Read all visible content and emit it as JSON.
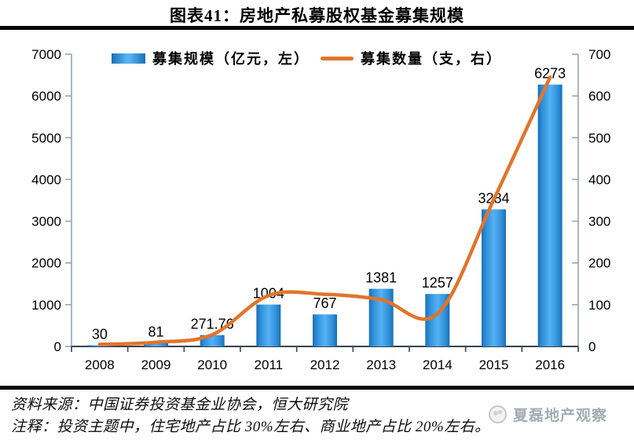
{
  "header": {
    "title": "图表41：房地产私募股权基金募集规模"
  },
  "chart_data": {
    "type": "bar+line",
    "categories": [
      "2008",
      "2009",
      "2010",
      "2011",
      "2012",
      "2013",
      "2014",
      "2015",
      "2016"
    ],
    "series": [
      {
        "name": "募集规模（亿元，左）",
        "type": "bar",
        "axis": "left",
        "values": [
          30,
          81,
          271.76,
          1004,
          767,
          1381,
          1257,
          3284,
          6273
        ],
        "labels": [
          "30",
          "81",
          "271.76",
          "1004",
          "767",
          "1381",
          "1257",
          "3284",
          "6273"
        ]
      },
      {
        "name": "募集数量（支，右）",
        "type": "line",
        "axis": "right",
        "values": [
          5,
          10,
          28,
          122,
          125,
          112,
          78,
          352,
          645
        ]
      }
    ],
    "left_axis": {
      "min": 0,
      "max": 7000,
      "step": 1000,
      "ticks": [
        "0",
        "1000",
        "2000",
        "3000",
        "4000",
        "5000",
        "6000",
        "7000"
      ]
    },
    "right_axis": {
      "min": 0,
      "max": 700,
      "step": 100,
      "ticks": [
        "0",
        "100",
        "200",
        "300",
        "400",
        "500",
        "600",
        "700"
      ]
    },
    "legend_position": "top",
    "grid": false,
    "colors": {
      "bar_edge": "#1a6fb4",
      "bar_body": "#2f8fd9",
      "bar_highlight": "#55b2f3",
      "line": "#e0752b"
    }
  },
  "footer": {
    "source": "资料来源：中国证券投资基金业协会，恒大研究院",
    "note": "注释：投资主题中，住宅地产占比 30%左右、商业地产占比 20%左右。"
  },
  "watermark": {
    "text": "夏磊地产观察"
  }
}
